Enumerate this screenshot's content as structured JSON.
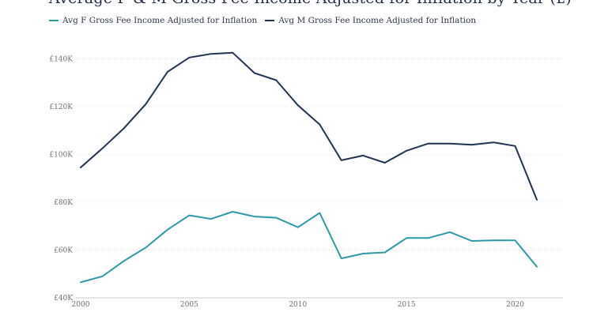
{
  "chart_data": {
    "type": "line",
    "title": "Average F & M Gross Fee Income Adjusted for Inflation by Year (£)",
    "xlabel": "",
    "ylabel": "",
    "x": [
      2000,
      2001,
      2002,
      2003,
      2004,
      2005,
      2006,
      2007,
      2008,
      2009,
      2010,
      2011,
      2012,
      2013,
      2014,
      2015,
      2016,
      2017,
      2018,
      2019,
      2020,
      2021
    ],
    "xticks": [
      2000,
      2005,
      2010,
      2015,
      2020
    ],
    "xlim": [
      2000,
      2022.2
    ],
    "ylim": [
      40000,
      150000
    ],
    "yticks": [
      40000,
      60000,
      80000,
      100000,
      120000,
      140000
    ],
    "ytick_labels": [
      "£40K",
      "£60K",
      "£80K",
      "£100K",
      "£120K",
      "£140K"
    ],
    "grid": "horizontal dotted",
    "legend": "top-left",
    "series": [
      {
        "name": "Avg F Gross Fee Income Adjusted for Inflation",
        "color": "#2a9aaa",
        "values": [
          46500,
          49000,
          55500,
          61000,
          68500,
          74500,
          73000,
          76000,
          74000,
          73500,
          69500,
          75500,
          56500,
          58500,
          59000,
          65000,
          65000,
          67500,
          63800,
          64000,
          64000,
          53000
        ]
      },
      {
        "name": "Avg M Gross Fee Income Adjusted for Inflation",
        "color": "#1f3352",
        "values": [
          94500,
          102500,
          111000,
          121000,
          134500,
          140500,
          142000,
          142500,
          134000,
          131000,
          120500,
          112500,
          97500,
          99500,
          96500,
          101500,
          104500,
          104500,
          104000,
          105000,
          103500,
          81000
        ]
      }
    ]
  }
}
